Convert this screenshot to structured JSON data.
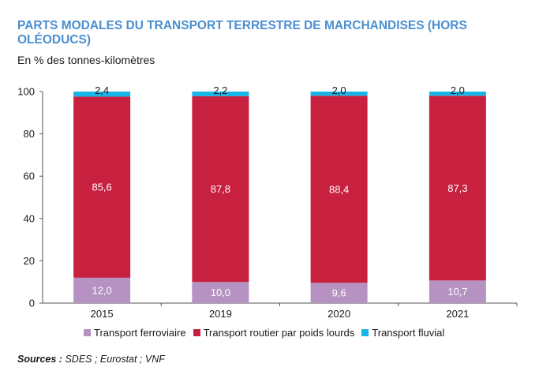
{
  "title": "PARTS MODALES DU TRANSPORT TERRESTRE DE MARCHANDISES (HORS OLÉODUCS)",
  "subtitle": "En % des tonnes-kilomètres",
  "sources_label": "Sources :",
  "sources_text": "SDES ; Eurostat ; VNF",
  "chart_data": {
    "type": "bar",
    "stacked": true,
    "categories": [
      "2015",
      "2019",
      "2020",
      "2021"
    ],
    "series": [
      {
        "name": "Transport ferroviaire",
        "color": "#b592c2",
        "values": [
          12.0,
          10.0,
          9.6,
          10.7
        ],
        "labels": [
          "12,0",
          "10,0",
          "9,6",
          "10,7"
        ]
      },
      {
        "name": "Transport routier par poids lourds",
        "color": "#c8203f",
        "values": [
          85.6,
          87.8,
          88.4,
          87.3
        ],
        "labels": [
          "85,6",
          "87,8",
          "88,4",
          "87,3"
        ]
      },
      {
        "name": "Transport fluvial",
        "color": "#19b5e6",
        "values": [
          2.4,
          2.2,
          2.0,
          2.0
        ],
        "labels": [
          "2,4",
          "2,2",
          "2,0",
          "2,0"
        ]
      }
    ],
    "ylim": [
      0,
      100
    ],
    "yticks": [
      0,
      20,
      40,
      60,
      80,
      100
    ],
    "grid": false,
    "legend_position": "bottom"
  }
}
